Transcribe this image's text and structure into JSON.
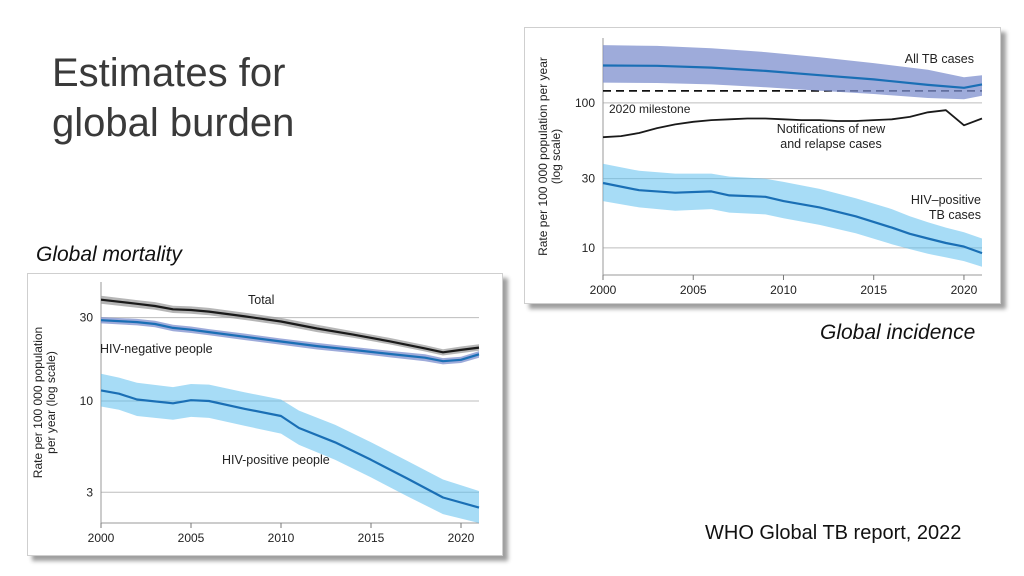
{
  "slide": {
    "title_line1": "Estimates for",
    "title_line2": "global burden",
    "caption_mortality": "Global mortality",
    "caption_incidence": "Global incidence",
    "source": "WHO Global TB report, 2022"
  },
  "colors": {
    "blue_line": "#1a6fb5",
    "blue_band": "#5ec0ee",
    "navy_band": "#7d8fce",
    "black_line": "#1a1a1a",
    "grey_band": "#9e9e9e"
  },
  "chart_data": [
    {
      "id": "incidence",
      "type": "line",
      "scale": "log",
      "xlabel": "",
      "ylabel_line1": "Rate per 100 000 population per year",
      "ylabel_line2": "(log scale)",
      "xlim": [
        2000,
        2021
      ],
      "ylim": [
        6.5,
        280
      ],
      "xticks": [
        2000,
        2005,
        2010,
        2015,
        2020
      ],
      "yticks": [
        10,
        30,
        100
      ],
      "milestone": {
        "label": "2020 milestone",
        "value": 121
      },
      "series": [
        {
          "name": "All TB cases",
          "label_lines": [
            "All TB cases"
          ],
          "style": "band",
          "x": [
            2000,
            2003,
            2006,
            2009,
            2012,
            2015,
            2018,
            2020,
            2021
          ],
          "values": [
            181,
            180,
            175,
            166,
            155,
            145,
            133,
            127,
            134
          ],
          "lower": [
            138,
            137,
            134,
            128,
            121,
            115,
            108,
            106,
            112
          ],
          "upper": [
            250,
            247,
            238,
            224,
            206,
            188,
            169,
            150,
            155
          ]
        },
        {
          "name": "Notifications of new and relapse cases",
          "label_lines": [
            "Notifications of new",
            "and relapse cases"
          ],
          "style": "line",
          "x": [
            2000,
            2001,
            2002,
            2003,
            2004,
            2005,
            2006,
            2007,
            2008,
            2009,
            2010,
            2011,
            2012,
            2013,
            2014,
            2015,
            2016,
            2017,
            2018,
            2019,
            2020,
            2021
          ],
          "values": [
            58,
            59,
            62,
            67,
            71,
            74,
            76,
            77,
            78,
            78,
            77,
            76,
            76,
            75,
            75,
            76,
            77,
            80,
            86,
            89,
            70,
            78
          ]
        },
        {
          "name": "HIV-positive TB cases",
          "label_lines": [
            "HIV–positive",
            "TB cases"
          ],
          "style": "band",
          "x": [
            2000,
            2002,
            2004,
            2006,
            2007,
            2009,
            2010,
            2012,
            2014,
            2016,
            2017,
            2018,
            2019,
            2020,
            2021
          ],
          "values": [
            28,
            25,
            24,
            24.5,
            23,
            22.5,
            21,
            19,
            16.5,
            13.8,
            12.5,
            11.6,
            10.8,
            10.2,
            9.2
          ],
          "lower": [
            21,
            19,
            18,
            18.5,
            17.5,
            17,
            16,
            14.4,
            12.6,
            10.6,
            9.8,
            9.1,
            8.6,
            8.1,
            7.4
          ],
          "upper": [
            38,
            34,
            32.5,
            32.5,
            31,
            30,
            28.5,
            25.5,
            22,
            18.5,
            16.5,
            15,
            13.8,
            12.8,
            11.6
          ]
        }
      ]
    },
    {
      "id": "mortality",
      "type": "line",
      "scale": "log",
      "xlabel": "",
      "ylabel_line1": "Rate per 100 000 population",
      "ylabel_line2": "per year (log scale)",
      "xlim": [
        2000,
        2021
      ],
      "ylim": [
        2,
        48
      ],
      "xticks": [
        2000,
        2005,
        2010,
        2015,
        2020
      ],
      "yticks": [
        3,
        10,
        30
      ],
      "series": [
        {
          "name": "Total",
          "label_lines": [
            "Total"
          ],
          "style": "band",
          "color": "black",
          "x": [
            2000,
            2002,
            2003,
            2004,
            2005,
            2006,
            2008,
            2010,
            2012,
            2014,
            2016,
            2018,
            2019,
            2020,
            2021
          ],
          "values": [
            38,
            36,
            35,
            33.5,
            33.2,
            32.5,
            30.5,
            28.5,
            26,
            24,
            22,
            20,
            19,
            19.6,
            20.2
          ],
          "lower": [
            36,
            34.2,
            33.3,
            31.9,
            31.6,
            31,
            29.1,
            27.2,
            24.8,
            23,
            21.1,
            19.2,
            18.2,
            18.8,
            19.4
          ],
          "upper": [
            40,
            37.8,
            36.8,
            35.1,
            34.8,
            34.1,
            32,
            29.9,
            27.3,
            25.1,
            23,
            20.9,
            19.8,
            20.5,
            21.1
          ]
        },
        {
          "name": "HIV-negative people",
          "label_lines": [
            "HIV-negative people"
          ],
          "style": "band",
          "color": "navy",
          "x": [
            2000,
            2002,
            2003,
            2004,
            2005,
            2006,
            2008,
            2010,
            2012,
            2014,
            2016,
            2018,
            2019,
            2020,
            2021
          ],
          "values": [
            29,
            28.3,
            27.6,
            26.2,
            25.6,
            24.8,
            23.3,
            21.9,
            20.6,
            19.6,
            18.6,
            17.7,
            16.9,
            17.2,
            18.5
          ],
          "lower": [
            27.8,
            27.1,
            26.4,
            25.1,
            24.5,
            23.8,
            22.3,
            21,
            19.7,
            18.8,
            17.8,
            16.9,
            16.2,
            16.5,
            17.7
          ],
          "upper": [
            30.2,
            29.5,
            28.8,
            27.3,
            26.7,
            25.8,
            24.3,
            22.8,
            21.5,
            20.4,
            19.4,
            18.5,
            17.6,
            17.9,
            19.3
          ]
        },
        {
          "name": "HIV-positive people",
          "label_lines": [
            "HIV-positive people"
          ],
          "style": "band",
          "color": "blue",
          "x": [
            2000,
            2001,
            2002,
            2004,
            2005,
            2006,
            2008,
            2010,
            2011,
            2013,
            2015,
            2017,
            2019,
            2021
          ],
          "values": [
            11.5,
            11,
            10.2,
            9.7,
            10.1,
            10,
            9,
            8.2,
            7,
            5.8,
            4.6,
            3.6,
            2.8,
            2.45
          ],
          "lower": [
            9.3,
            8.9,
            8.2,
            7.8,
            8.1,
            8,
            7.2,
            6.5,
            5.6,
            4.6,
            3.65,
            2.85,
            2.25,
            2.0
          ],
          "upper": [
            14.3,
            13.6,
            12.7,
            12,
            12.5,
            12.4,
            11.2,
            10.2,
            8.8,
            7.3,
            5.8,
            4.55,
            3.55,
            3.05
          ]
        }
      ]
    }
  ]
}
